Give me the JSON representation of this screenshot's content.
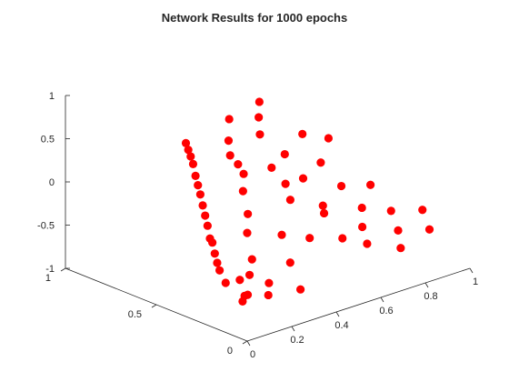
{
  "chart_data": {
    "type": "scatter",
    "title": "Network Results for 1000 epochs",
    "projection": "3d",
    "marker_color": "#ff0000",
    "axes": {
      "x": {
        "range": [
          0,
          1
        ],
        "ticks": [
          "0",
          "0.2",
          "0.4",
          "0.6",
          "0.8",
          "1"
        ]
      },
      "y": {
        "range": [
          0,
          1
        ],
        "ticks": [
          "0",
          "0.5",
          "1"
        ]
      },
      "z": {
        "range": [
          -1,
          1
        ],
        "ticks": [
          "-1",
          "-0.5",
          "0",
          "0.5",
          "1"
        ]
      }
    },
    "grid": false,
    "series": [
      {
        "points_xy_z": [
          [
            0.02,
            0.05,
            -0.6
          ],
          [
            0.05,
            0.18,
            -0.52
          ],
          [
            0.07,
            0.1,
            -0.62
          ],
          [
            0.08,
            0.25,
            -0.46
          ],
          [
            0.1,
            0.12,
            -0.65
          ],
          [
            0.11,
            0.3,
            -0.44
          ],
          [
            0.13,
            0.2,
            -0.57
          ],
          [
            0.14,
            0.35,
            -0.4
          ],
          [
            0.16,
            0.08,
            -0.67
          ],
          [
            0.17,
            0.4,
            -0.34
          ],
          [
            0.19,
            0.22,
            -0.58
          ],
          [
            0.2,
            0.45,
            -0.36
          ],
          [
            0.22,
            0.15,
            -0.64
          ],
          [
            0.23,
            0.5,
            -0.28
          ],
          [
            0.25,
            0.28,
            -0.5
          ],
          [
            0.26,
            0.55,
            -0.23
          ],
          [
            0.28,
            0.05,
            -0.68
          ],
          [
            0.29,
            0.6,
            -0.18
          ],
          [
            0.31,
            0.38,
            -0.33
          ],
          [
            0.32,
            0.65,
            -0.12
          ],
          [
            0.34,
            0.18,
            -0.53
          ],
          [
            0.35,
            0.7,
            -0.08
          ],
          [
            0.37,
            0.45,
            -0.22
          ],
          [
            0.38,
            0.75,
            -0.04
          ],
          [
            0.4,
            0.3,
            -0.36
          ],
          [
            0.41,
            0.8,
            0.03
          ],
          [
            0.43,
            0.55,
            -0.09
          ],
          [
            0.44,
            0.85,
            0.05
          ],
          [
            0.46,
            0.22,
            -0.38
          ],
          [
            0.47,
            0.9,
            0.06
          ],
          [
            0.49,
            0.62,
            0.0
          ],
          [
            0.5,
            0.95,
            0.07
          ],
          [
            0.52,
            0.4,
            -0.14
          ],
          [
            0.53,
            0.7,
            0.01
          ],
          [
            0.55,
            0.15,
            -0.4
          ],
          [
            0.56,
            0.78,
            0.02
          ],
          [
            0.58,
            0.5,
            -0.09
          ],
          [
            0.59,
            0.3,
            -0.27
          ],
          [
            0.61,
            0.85,
            0.09
          ],
          [
            0.62,
            0.1,
            -0.48
          ],
          [
            0.64,
            0.65,
            -0.08
          ],
          [
            0.65,
            0.38,
            -0.3
          ],
          [
            0.67,
            0.92,
            0.23
          ],
          [
            0.68,
            0.2,
            -0.42
          ],
          [
            0.7,
            0.55,
            -0.17
          ],
          [
            0.71,
            0.8,
            0.12
          ],
          [
            0.73,
            0.05,
            -0.58
          ],
          [
            0.74,
            0.7,
            -0.05
          ],
          [
            0.76,
            0.3,
            -0.35
          ],
          [
            0.77,
            0.88,
            0.2
          ],
          [
            0.79,
            0.45,
            -0.25
          ],
          [
            0.8,
            0.15,
            -0.52
          ],
          [
            0.82,
            0.6,
            -0.13
          ],
          [
            0.83,
            0.95,
            0.27
          ],
          [
            0.85,
            0.25,
            -0.42
          ],
          [
            0.86,
            0.75,
            0.04
          ],
          [
            0.88,
            0.4,
            -0.27
          ],
          [
            0.9,
            0.1,
            -0.55
          ],
          [
            0.92,
            0.68,
            0.0
          ],
          [
            0.95,
            0.2,
            -0.45
          ]
        ]
      }
    ]
  }
}
